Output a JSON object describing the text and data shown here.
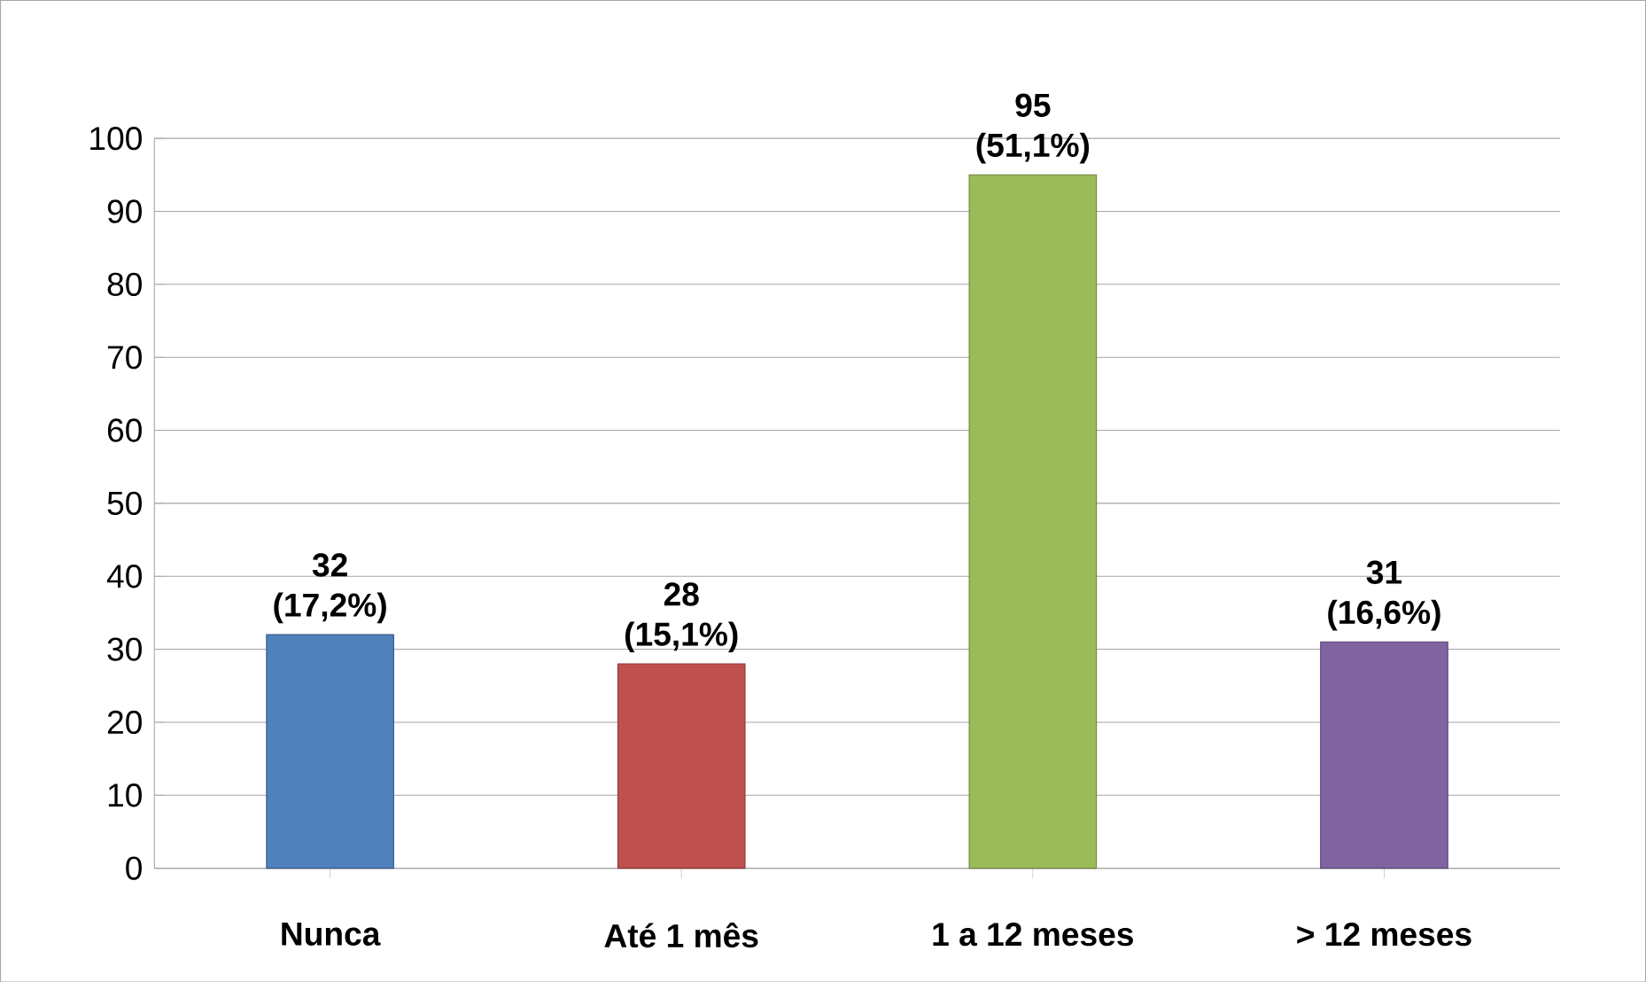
{
  "chart_data": {
    "type": "bar",
    "categories": [
      "Nunca",
      "Até 1 mês",
      "1 a 12 meses",
      "> 12 meses"
    ],
    "values": [
      32,
      28,
      95,
      31
    ],
    "colors": [
      "#4f81bd",
      "#c0504d",
      "#9bbb59",
      "#8064a2"
    ],
    "value_labels": [
      "32 (17,2%)",
      "28 (15,1%)",
      "95 (51,1%)",
      "31 (16,6%)"
    ],
    "ylim": [
      0,
      100
    ],
    "yticks": [
      0,
      10,
      20,
      30,
      40,
      50,
      60,
      70,
      80,
      90,
      100
    ],
    "grid": "y"
  }
}
